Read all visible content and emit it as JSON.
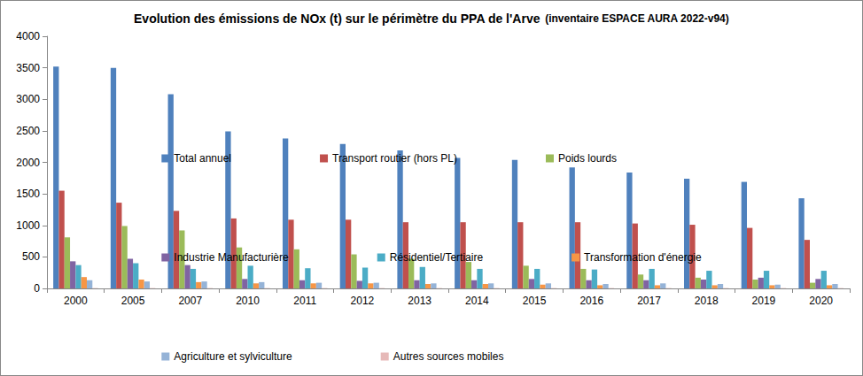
{
  "chart_data": {
    "type": "bar",
    "title": "Evolution des émissions de NOx (t) sur le périmètre du PPA de l'Arve",
    "subtitle": "(inventaire ESPACE AURA 2022-v94)",
    "categories": [
      "2000",
      "2005",
      "2007",
      "2010",
      "2011",
      "2012",
      "2013",
      "2014",
      "2015",
      "2016",
      "2017",
      "2018",
      "2019",
      "2020"
    ],
    "series": [
      {
        "name": "Total annuel",
        "color": "#4F81BD",
        "values": [
          3520,
          3500,
          3080,
          2490,
          2380,
          2290,
          2190,
          2070,
          2040,
          1920,
          1840,
          1740,
          1690,
          1430
        ]
      },
      {
        "name": "Transport routier (hors PL)",
        "color": "#C0504D",
        "values": [
          1550,
          1360,
          1230,
          1110,
          1090,
          1090,
          1050,
          1050,
          1050,
          1050,
          1030,
          1010,
          960,
          770
        ]
      },
      {
        "name": "Poids lourds",
        "color": "#9BBB59",
        "values": [
          810,
          990,
          920,
          650,
          620,
          540,
          470,
          420,
          360,
          310,
          220,
          170,
          140,
          90
        ]
      },
      {
        "name": "Industrie Manufacturière",
        "color": "#8064A2",
        "values": [
          430,
          470,
          370,
          150,
          130,
          120,
          130,
          130,
          150,
          130,
          130,
          140,
          170,
          150
        ]
      },
      {
        "name": "Résidentiel/Tertiaire",
        "color": "#4BACC6",
        "values": [
          370,
          400,
          310,
          360,
          320,
          330,
          340,
          310,
          310,
          300,
          310,
          280,
          280,
          280
        ]
      },
      {
        "name": "Transformation d'énergie",
        "color": "#F79646",
        "values": [
          180,
          140,
          100,
          80,
          80,
          80,
          70,
          70,
          60,
          50,
          50,
          50,
          50,
          50
        ]
      },
      {
        "name": "Agriculture et sylviculture",
        "color": "#95B3D7",
        "values": [
          130,
          110,
          110,
          100,
          90,
          90,
          80,
          80,
          80,
          70,
          80,
          70,
          60,
          70
        ]
      },
      {
        "name": "Autres sources mobiles",
        "color": "#E6B9B8",
        "values": [
          5,
          5,
          5,
          5,
          5,
          5,
          5,
          5,
          5,
          5,
          5,
          5,
          5,
          5
        ]
      }
    ],
    "ylim": [
      0,
      4000
    ],
    "yticks": [
      0,
      500,
      1000,
      1500,
      2000,
      2500,
      3000,
      3500,
      4000
    ],
    "grid": false,
    "legend": "bottom"
  }
}
